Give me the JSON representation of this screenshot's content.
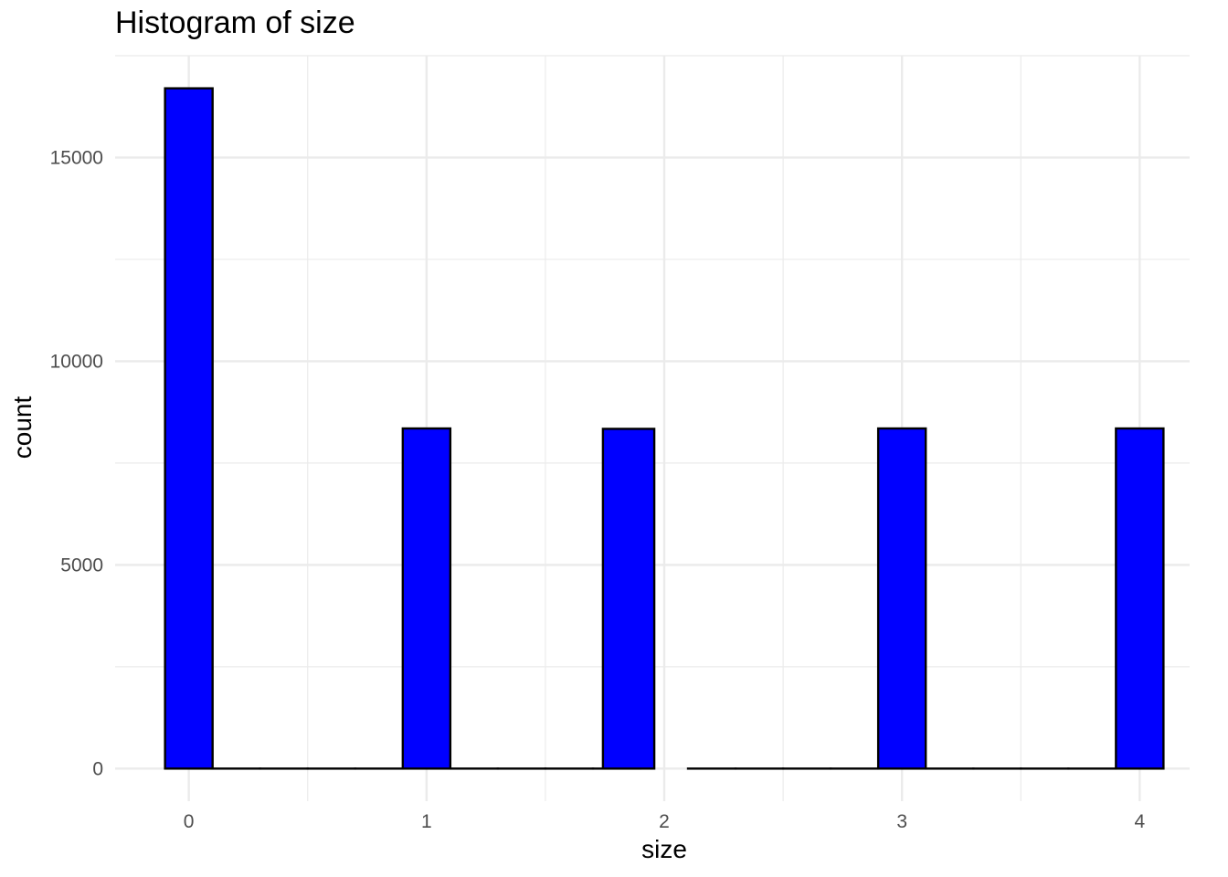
{
  "chart_data": {
    "type": "bar",
    "title": "Histogram of size",
    "xlabel": "size",
    "ylabel": "count",
    "bins": [
      {
        "x_min": -0.1,
        "x_max": 0.1,
        "count": 16700
      },
      {
        "x_min": 0.1,
        "x_max": 0.3,
        "count": 0
      },
      {
        "x_min": 0.3,
        "x_max": 0.5,
        "count": 0
      },
      {
        "x_min": 0.5,
        "x_max": 0.7,
        "count": 0
      },
      {
        "x_min": 0.7,
        "x_max": 0.9,
        "count": 0
      },
      {
        "x_min": 0.9,
        "x_max": 1.1,
        "count": 8350
      },
      {
        "x_min": 1.1,
        "x_max": 1.3,
        "count": 0
      },
      {
        "x_min": 1.3,
        "x_max": 1.5,
        "count": 0
      },
      {
        "x_min": 1.5,
        "x_max": 1.7,
        "count": 0
      },
      {
        "x_min": 1.7,
        "x_max": 1.9,
        "count": 0
      },
      {
        "x_min": 1.742,
        "x_max": 1.958,
        "count": 8340
      },
      {
        "x_min": 2.1,
        "x_max": 2.3,
        "count": 0
      },
      {
        "x_min": 2.3,
        "x_max": 2.5,
        "count": 0
      },
      {
        "x_min": 2.5,
        "x_max": 2.7,
        "count": 0
      },
      {
        "x_min": 2.7,
        "x_max": 2.9,
        "count": 0
      },
      {
        "x_min": 2.9,
        "x_max": 3.1,
        "count": 8350
      },
      {
        "x_min": 3.1,
        "x_max": 3.3,
        "count": 0
      },
      {
        "x_min": 3.3,
        "x_max": 3.5,
        "count": 0
      },
      {
        "x_min": 3.5,
        "x_max": 3.7,
        "count": 0
      },
      {
        "x_min": 3.7,
        "x_max": 3.9,
        "count": 0
      },
      {
        "x_min": 3.9,
        "x_max": 4.1,
        "count": 8350
      }
    ],
    "xlim": [
      -0.31,
      4.21
    ],
    "ylim": [
      -800,
      17500
    ],
    "x_ticks": [
      0,
      1,
      2,
      3,
      4
    ],
    "x_tick_labels": [
      "0",
      "1",
      "2",
      "3",
      "4"
    ],
    "y_ticks": [
      0,
      5000,
      10000,
      15000
    ],
    "y_tick_labels": [
      "0",
      "5000",
      "10000",
      "15000"
    ],
    "fill_color": "#0000ff",
    "outline_color": "#000000",
    "grid": true,
    "grid_color": "#ebebeb",
    "legend": "none"
  }
}
